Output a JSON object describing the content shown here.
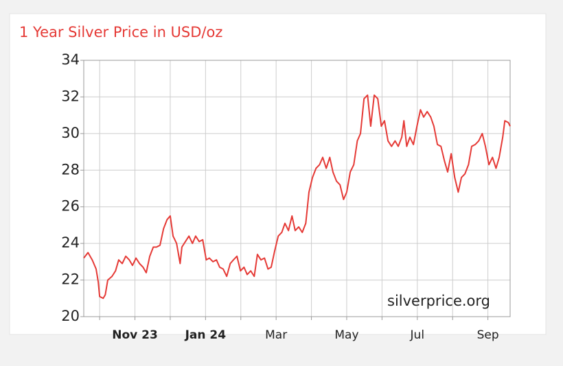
{
  "chart_data": {
    "type": "line",
    "title": "1 Year Silver Price in USD/oz",
    "annotation": "silverprice.org",
    "color": "#e53935",
    "grid": true,
    "xlim": [
      -0.45,
      11.63
    ],
    "xticks": [
      {
        "value": 0,
        "label": null
      },
      {
        "value": 1,
        "label": "Nov 23"
      },
      {
        "value": 2,
        "label": null
      },
      {
        "value": 3,
        "label": "Jan 24"
      },
      {
        "value": 4,
        "label": null
      },
      {
        "value": 5,
        "label": "Mar"
      },
      {
        "value": 6,
        "label": null
      },
      {
        "value": 7,
        "label": "May"
      },
      {
        "value": 8,
        "label": null
      },
      {
        "value": 9,
        "label": "Jul"
      },
      {
        "value": 10,
        "label": null
      },
      {
        "value": 11,
        "label": "Sep"
      }
    ],
    "ylim": [
      20,
      34
    ],
    "yticks": [
      20,
      22,
      24,
      26,
      28,
      30,
      32,
      34
    ],
    "x": [
      -0.45,
      -0.33,
      -0.21,
      -0.1,
      -0.04,
      0,
      0.1,
      0.16,
      0.23,
      0.35,
      0.45,
      0.54,
      0.64,
      0.74,
      0.84,
      0.93,
      1.03,
      1.13,
      1.23,
      1.32,
      1.42,
      1.52,
      1.61,
      1.71,
      1.81,
      1.91,
      2.0,
      2.08,
      2.18,
      2.28,
      2.33,
      2.43,
      2.53,
      2.63,
      2.72,
      2.82,
      2.92,
      3.02,
      3.11,
      3.21,
      3.31,
      3.4,
      3.5,
      3.6,
      3.7,
      3.79,
      3.89,
      3.99,
      4.09,
      4.18,
      4.28,
      4.38,
      4.47,
      4.57,
      4.67,
      4.77,
      4.86,
      4.96,
      5.06,
      5.16,
      5.25,
      5.35,
      5.45,
      5.54,
      5.64,
      5.74,
      5.84,
      5.93,
      6.03,
      6.13,
      6.23,
      6.32,
      6.42,
      6.52,
      6.61,
      6.71,
      6.81,
      6.91,
      7.0,
      7.1,
      7.2,
      7.3,
      7.39,
      7.49,
      7.59,
      7.68,
      7.78,
      7.88,
      7.98,
      8.07,
      8.17,
      8.27,
      8.37,
      8.46,
      8.56,
      8.62,
      8.7,
      8.79,
      8.89,
      8.99,
      9.09,
      9.18,
      9.28,
      9.38,
      9.47,
      9.57,
      9.67,
      9.77,
      9.86,
      9.96,
      10.06,
      10.16,
      10.25,
      10.35,
      10.45,
      10.54,
      10.64,
      10.74,
      10.84,
      10.93,
      11.03,
      11.13,
      11.23,
      11.32,
      11.42,
      11.48,
      11.58,
      11.63
    ],
    "values": [
      23.2,
      23.5,
      23.1,
      22.6,
      21.9,
      21.1,
      21.0,
      21.2,
      22.0,
      22.2,
      22.5,
      23.1,
      22.9,
      23.3,
      23.1,
      22.8,
      23.2,
      22.9,
      22.7,
      22.4,
      23.3,
      23.8,
      23.8,
      23.9,
      24.8,
      25.3,
      25.5,
      24.4,
      24.0,
      22.9,
      23.8,
      24.1,
      24.4,
      24.0,
      24.4,
      24.1,
      24.2,
      23.1,
      23.2,
      23.0,
      23.1,
      22.7,
      22.6,
      22.2,
      22.9,
      23.1,
      23.3,
      22.5,
      22.7,
      22.3,
      22.5,
      22.2,
      23.4,
      23.1,
      23.2,
      22.6,
      22.7,
      23.6,
      24.4,
      24.6,
      25.1,
      24.7,
      25.5,
      24.7,
      24.9,
      24.6,
      25.1,
      26.8,
      27.6,
      28.1,
      28.3,
      28.7,
      28.1,
      28.7,
      27.9,
      27.4,
      27.2,
      26.4,
      26.8,
      27.9,
      28.3,
      29.6,
      30.0,
      31.9,
      32.1,
      30.4,
      32.1,
      31.9,
      30.4,
      30.7,
      29.6,
      29.3,
      29.6,
      29.3,
      29.8,
      30.7,
      29.3,
      29.8,
      29.4,
      30.4,
      31.3,
      30.9,
      31.2,
      30.9,
      30.4,
      29.4,
      29.3,
      28.5,
      27.9,
      28.9,
      27.6,
      26.8,
      27.6,
      27.8,
      28.3,
      29.3,
      29.4,
      29.6,
      30.0,
      29.3,
      28.3,
      28.7,
      28.1,
      28.7,
      29.8,
      30.7,
      30.6,
      30.4
    ]
  }
}
